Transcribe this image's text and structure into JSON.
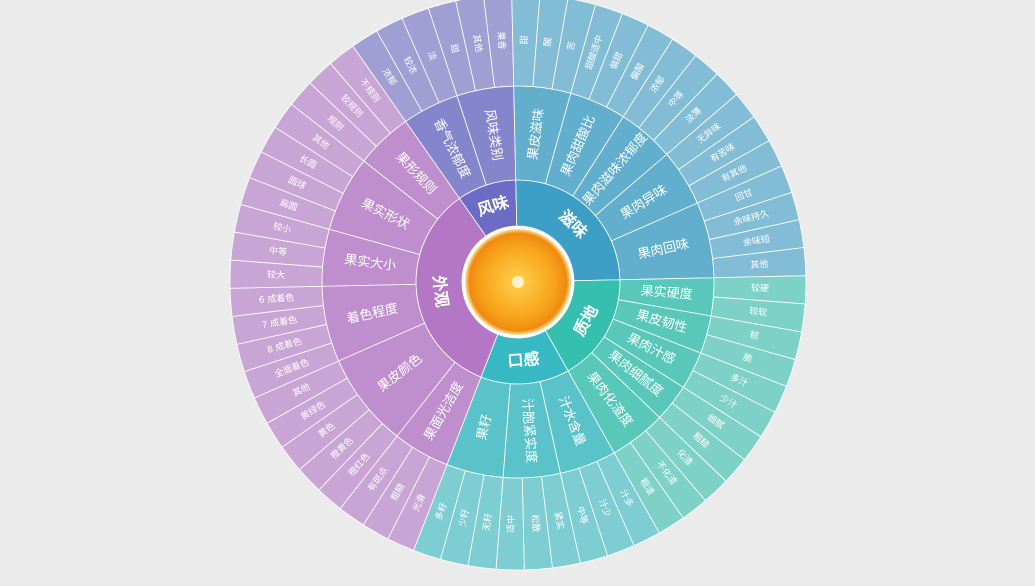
{
  "chart_data": {
    "type": "sunburst",
    "start_angle": -35,
    "children": [
      {
        "name": "风味",
        "color": "#6c6cc4",
        "children": [
          {
            "name": "香气浓郁度",
            "children": [
              "浓郁",
              "较浓",
              "淡"
            ]
          },
          {
            "name": "风味类别",
            "children": [
              "甜",
              "其他",
              "果香"
            ]
          }
        ]
      },
      {
        "name": "滋味",
        "color": "#3e9fc6",
        "children": [
          {
            "name": "果皮滋味",
            "children": [
              "甜",
              "酸",
              "苦"
            ]
          },
          {
            "name": "果肉甜酸比",
            "children": [
              "甜酸适中",
              "偏甜",
              "偏酸"
            ]
          },
          {
            "name": "果肉滋味浓郁度",
            "children": [
              "浓郁",
              "中等",
              "淡薄"
            ]
          },
          {
            "name": "果肉异味",
            "children": [
              "无异味",
              "有苦味",
              "有其他"
            ]
          },
          {
            "name": "果肉回味",
            "children": [
              "回甘",
              "余味持久",
              "余味短",
              "其他"
            ]
          }
        ]
      },
      {
        "name": "质地",
        "color": "#35bfae",
        "children": [
          {
            "name": "果实硬度",
            "children": [
              "较硬",
              "较软"
            ]
          },
          {
            "name": "果皮韧性",
            "children": [
              "韧",
              "脆"
            ]
          },
          {
            "name": "果肉汁感",
            "children": [
              "多汁",
              "少汁"
            ]
          },
          {
            "name": "果肉细腻度",
            "children": [
              "细腻",
              "粗糙"
            ]
          },
          {
            "name": "果肉化渣度",
            "children": [
              "化渣",
              "不化渣",
              "粗渣"
            ]
          }
        ]
      },
      {
        "name": "口感",
        "color": "#36b9c2",
        "children": [
          {
            "name": "汁水含量",
            "children": [
              "汁多",
              "汁少",
              "中等"
            ]
          },
          {
            "name": "汁胞紧实度",
            "children": [
              "紧实",
              "松散",
              "适中"
            ]
          },
          {
            "name": "果籽",
            "children": [
              "无籽",
              "少籽",
              "多籽"
            ]
          }
        ]
      },
      {
        "name": "外观",
        "color": "#b377c6",
        "children": [
          {
            "name": "果面光洁度",
            "children": [
              "光滑",
              "粗糙",
              "有斑点"
            ]
          },
          {
            "name": "果皮颜色",
            "children": [
              "橙红色",
              "橙黄色",
              "黄色",
              "黄绿色",
              "其他"
            ]
          },
          {
            "name": "着色程度",
            "children": [
              "全面着色",
              "8 成着色",
              "7 成着色",
              "6 成着色"
            ]
          },
          {
            "name": "果实大小",
            "children": [
              "较大",
              "中等",
              "较小"
            ]
          },
          {
            "name": "果实形状",
            "children": [
              "扁圆",
              "圆球",
              "长圆",
              "其他"
            ]
          },
          {
            "name": "果形规则",
            "children": [
              "规则",
              "较规则",
              "不规则"
            ]
          }
        ]
      }
    ]
  }
}
